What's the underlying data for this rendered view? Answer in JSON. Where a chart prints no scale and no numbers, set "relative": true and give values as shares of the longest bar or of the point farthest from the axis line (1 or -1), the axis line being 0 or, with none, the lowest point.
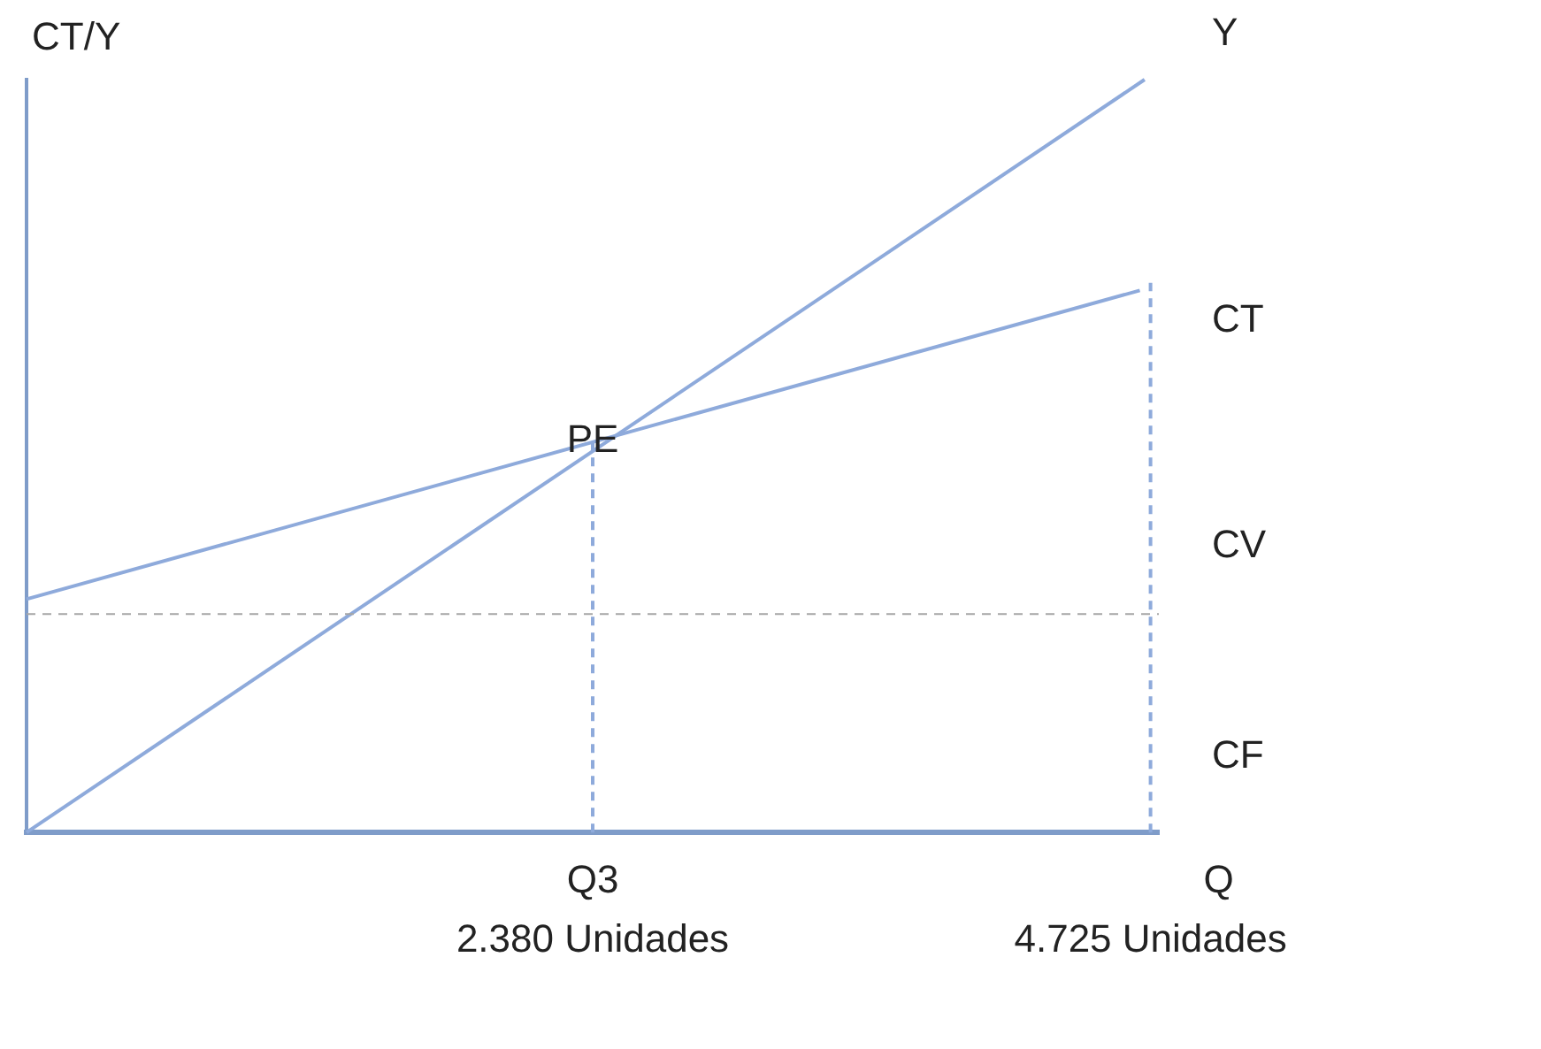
{
  "chart_data": {
    "type": "line",
    "ylabel": "CT/Y",
    "relative": true,
    "xlim": [
      0,
      4760
    ],
    "xticks": [
      {
        "value": 2380,
        "label": "2.380 Unidades"
      },
      {
        "value": 4725,
        "label": "4.725 Unidades"
      }
    ],
    "series": [
      {
        "color": "#8eaadb",
        "x": [
          0,
          4700
        ],
        "values": [
          0,
          1
        ]
      },
      {
        "color": "#8eaadb",
        "x": [
          0,
          4680
        ],
        "values": [
          0.31,
          0.72
        ]
      },
      {
        "color": "#8eaadb",
        "x": [
          2380,
          2380
        ],
        "values": [
          0,
          0.52
        ],
        "line_style": "dashed"
      },
      {
        "color": "#8eaadb",
        "x": [
          4725,
          4725
        ],
        "values": [
          0,
          0.73
        ],
        "line_style": "dashed"
      }
    ],
    "ref_lines": [
      {
        "axis": "y",
        "value": 0.29,
        "color": "#a6a6a6",
        "line_style": "dashed"
      }
    ],
    "annotations": [
      {
        "text": "PE",
        "x": 2380,
        "y": 0.52
      },
      "Y",
      "CT",
      "CV",
      "CF",
      "Q3",
      "Q"
    ],
    "grid": false,
    "legend": false,
    "marker": "none",
    "line_style": "solid"
  }
}
